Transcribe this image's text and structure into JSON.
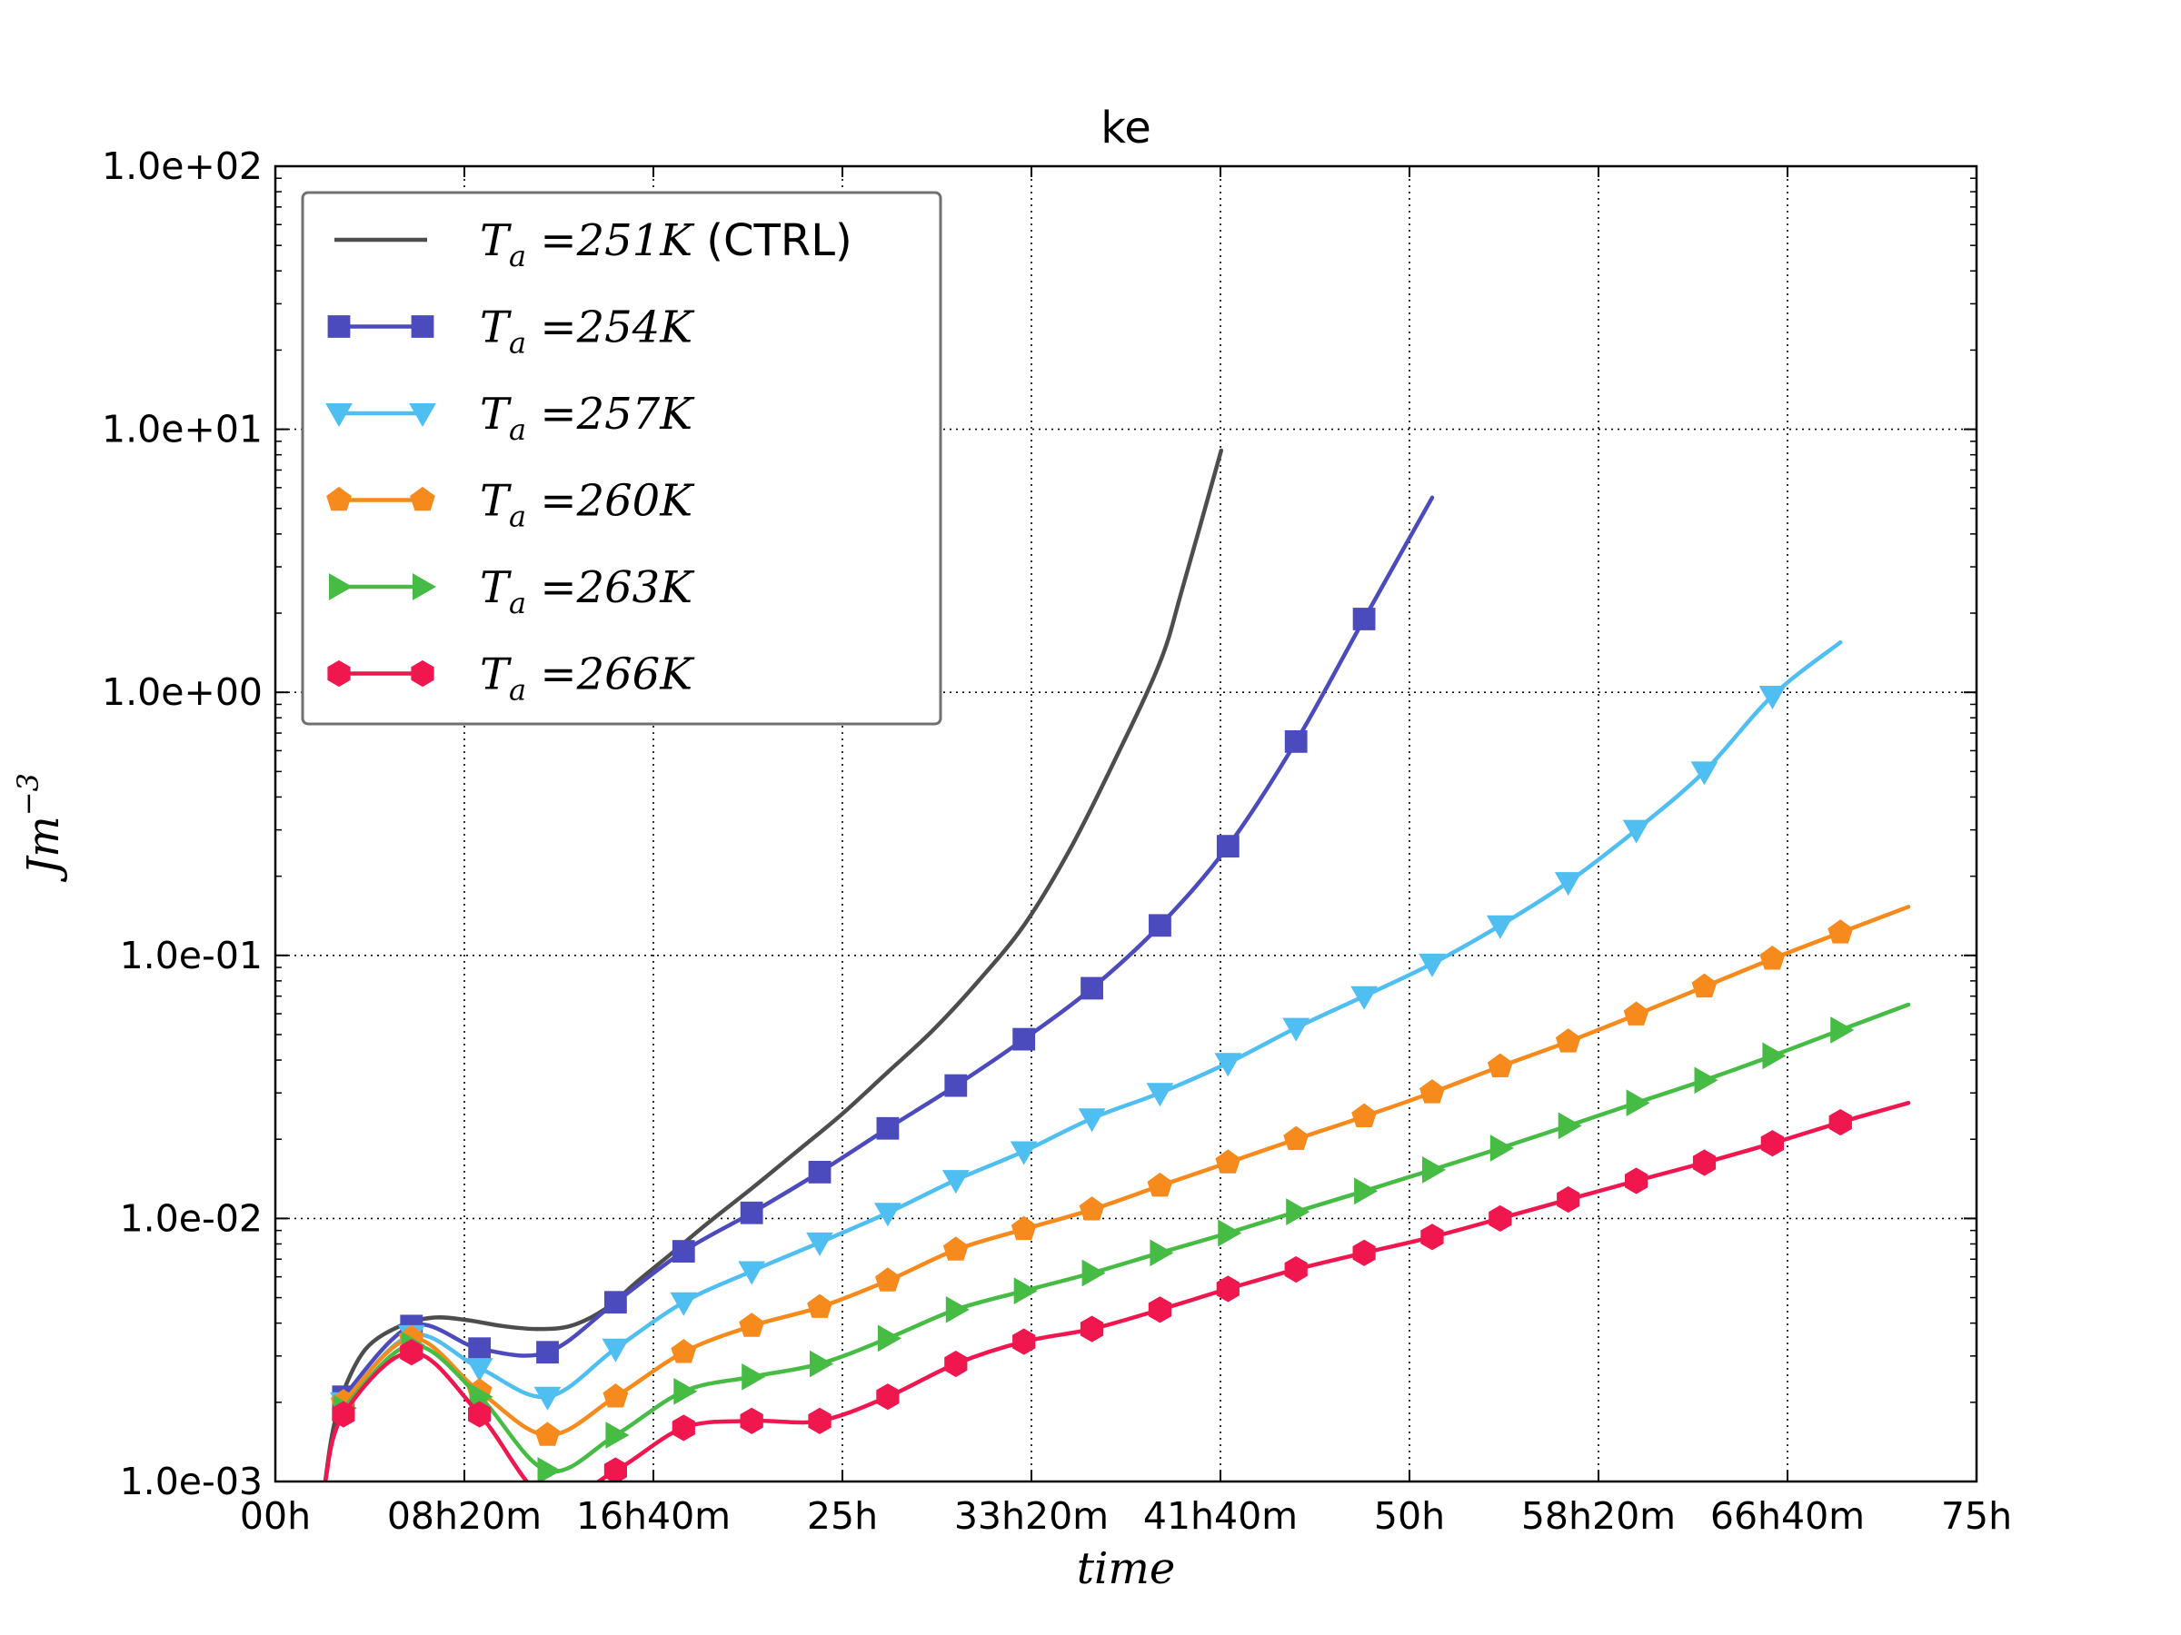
{
  "chart_data": {
    "type": "line",
    "title": "ke",
    "xlabel": "time",
    "ylabel_main": "Jm",
    "ylabel_exp": "−3",
    "xlim_hours": [
      0,
      75
    ],
    "ylim": [
      0.001,
      100
    ],
    "yscale": "log",
    "grid": true,
    "legend_position": "upper-left",
    "x_ticks": [
      0,
      8.333,
      16.667,
      25,
      33.333,
      41.667,
      50,
      58.333,
      66.667,
      75
    ],
    "x_tick_labels": [
      "00h",
      "08h20m",
      "16h40m",
      "25h",
      "33h20m",
      "41h40m",
      "50h",
      "58h20m",
      "66h40m",
      "75h"
    ],
    "y_ticks": [
      0.001,
      0.01,
      0.1,
      1,
      10,
      100
    ],
    "y_tick_labels": [
      "1.0e-03",
      "1.0e-02",
      "1.0e-01",
      "1.0e+00",
      "1.0e+01",
      "1.0e+02"
    ],
    "series": [
      {
        "label_sym": "T",
        "label_sub": "a",
        "label_val": " =251K",
        "label_extra": " (CTRL)",
        "color": "#4d4d4d",
        "marker": "none",
        "x": [
          2.2,
          2.5,
          3.0,
          4.0,
          5.5,
          7.0,
          8.5,
          10.0,
          11.5,
          13.0,
          14.5,
          16.0,
          17.5,
          19.0,
          21.0,
          23.0,
          25.0,
          27.0,
          29.0,
          31.0,
          33.0,
          35.0,
          37.0,
          39.0,
          40.0,
          41.7
        ],
        "y": [
          0.001,
          0.0015,
          0.0022,
          0.0032,
          0.0039,
          0.0042,
          0.0041,
          0.0039,
          0.0038,
          0.0039,
          0.0045,
          0.0058,
          0.0074,
          0.0095,
          0.013,
          0.018,
          0.025,
          0.036,
          0.052,
          0.08,
          0.13,
          0.25,
          0.55,
          1.3,
          2.5,
          8.3
        ]
      },
      {
        "label_sym": "T",
        "label_sub": "a",
        "label_val": " =254K",
        "label_extra": "",
        "color": "#4b4bbd",
        "marker": "square",
        "x": [
          3.0,
          6.0,
          9.0,
          12.0,
          15.0,
          18.0,
          21.0,
          24.0,
          27.0,
          30.0,
          33.0,
          36.0,
          39.0,
          42.0,
          45.0,
          48.0,
          51.0
        ],
        "y": [
          0.0021,
          0.0039,
          0.0032,
          0.0031,
          0.0048,
          0.0075,
          0.0105,
          0.015,
          0.022,
          0.032,
          0.048,
          0.075,
          0.13,
          0.26,
          0.65,
          1.9,
          5.5
        ],
        "marker_x": [
          3.0,
          6.0,
          9.0,
          12.0,
          15.0,
          18.0,
          21.0,
          24.0,
          27.0,
          30.0,
          33.0,
          36.0,
          39.0,
          42.0,
          45.0,
          48.0
        ]
      },
      {
        "label_sym": "T",
        "label_sub": "a",
        "label_val": " =257K",
        "label_extra": "",
        "color": "#4fbef0",
        "marker": "triangle-down",
        "x": [
          3.0,
          6.0,
          9.0,
          12.0,
          15.0,
          18.0,
          21.0,
          24.0,
          27.0,
          30.0,
          33.0,
          36.0,
          39.0,
          42.0,
          45.0,
          48.0,
          51.0,
          54.0,
          57.0,
          60.0,
          63.0,
          66.0,
          69.0
        ],
        "y": [
          0.002,
          0.0036,
          0.0027,
          0.0021,
          0.0032,
          0.0048,
          0.0063,
          0.0081,
          0.0105,
          0.014,
          0.018,
          0.024,
          0.03,
          0.039,
          0.053,
          0.07,
          0.093,
          0.13,
          0.19,
          0.3,
          0.5,
          0.97,
          1.55
        ],
        "marker_x": [
          3.0,
          6.0,
          9.0,
          12.0,
          15.0,
          18.0,
          21.0,
          24.0,
          27.0,
          30.0,
          33.0,
          36.0,
          39.0,
          42.0,
          45.0,
          48.0,
          51.0,
          54.0,
          57.0,
          60.0,
          63.0,
          66.0
        ]
      },
      {
        "label_sym": "T",
        "label_sub": "a",
        "label_val": " =260K",
        "label_extra": "",
        "color": "#f78a1d",
        "marker": "pentagon",
        "x": [
          3.0,
          6.0,
          9.0,
          12.0,
          15.0,
          18.0,
          21.0,
          24.0,
          27.0,
          30.0,
          33.0,
          36.0,
          39.0,
          42.0,
          45.0,
          48.0,
          51.0,
          54.0,
          57.0,
          60.0,
          63.0,
          66.0,
          69.0,
          72.0
        ],
        "y": [
          0.002,
          0.0035,
          0.0022,
          0.0015,
          0.0021,
          0.0031,
          0.0039,
          0.0046,
          0.0058,
          0.0076,
          0.0091,
          0.0108,
          0.0133,
          0.0163,
          0.02,
          0.0244,
          0.0301,
          0.0378,
          0.047,
          0.0595,
          0.076,
          0.097,
          0.122,
          0.153
        ],
        "marker_x": [
          3.0,
          6.0,
          9.0,
          12.0,
          15.0,
          18.0,
          21.0,
          24.0,
          27.0,
          30.0,
          33.0,
          36.0,
          39.0,
          42.0,
          45.0,
          48.0,
          51.0,
          54.0,
          57.0,
          60.0,
          63.0,
          66.0,
          69.0
        ]
      },
      {
        "label_sym": "T",
        "label_sub": "a",
        "label_val": " =263K",
        "label_extra": "",
        "color": "#46bc44",
        "marker": "triangle-right",
        "x": [
          3.0,
          6.0,
          9.0,
          12.0,
          15.0,
          18.0,
          21.0,
          24.0,
          27.0,
          30.0,
          33.0,
          36.0,
          39.0,
          42.0,
          45.0,
          48.0,
          51.0,
          54.0,
          57.0,
          60.0,
          63.0,
          66.0,
          69.0,
          72.0
        ],
        "y": [
          0.0019,
          0.0033,
          0.0021,
          0.0011,
          0.0015,
          0.0022,
          0.0025,
          0.0028,
          0.0035,
          0.0045,
          0.0053,
          0.0062,
          0.0074,
          0.0088,
          0.0106,
          0.0127,
          0.0153,
          0.0185,
          0.0225,
          0.0275,
          0.0335,
          0.0415,
          0.052,
          0.065
        ],
        "marker_x": [
          3.0,
          6.0,
          9.0,
          12.0,
          15.0,
          18.0,
          21.0,
          24.0,
          27.0,
          30.0,
          33.0,
          36.0,
          39.0,
          42.0,
          45.0,
          48.0,
          51.0,
          54.0,
          57.0,
          60.0,
          63.0,
          66.0,
          69.0
        ]
      },
      {
        "label_sym": "T",
        "label_sub": "a",
        "label_val": " =266K",
        "label_extra": "",
        "color": "#f0174f",
        "marker": "hexagon",
        "x": [
          2.2,
          3.0,
          6.0,
          9.0,
          12.0,
          15.0,
          18.0,
          21.0,
          24.0,
          27.0,
          30.0,
          33.0,
          36.0,
          39.0,
          42.0,
          45.0,
          48.0,
          51.0,
          54.0,
          57.0,
          60.0,
          63.0,
          66.0,
          69.0,
          72.0
        ],
        "y": [
          0.001,
          0.0018,
          0.0031,
          0.0018,
          0.00085,
          0.0011,
          0.0016,
          0.0017,
          0.0017,
          0.0021,
          0.0028,
          0.0034,
          0.0038,
          0.0045,
          0.0054,
          0.0064,
          0.0074,
          0.0085,
          0.01,
          0.0118,
          0.0139,
          0.0163,
          0.0193,
          0.0232,
          0.0275
        ],
        "marker_x": [
          3.0,
          6.0,
          9.0,
          12.0,
          15.0,
          18.0,
          21.0,
          24.0,
          27.0,
          30.0,
          33.0,
          36.0,
          39.0,
          42.0,
          45.0,
          48.0,
          51.0,
          54.0,
          57.0,
          60.0,
          63.0,
          66.0,
          69.0
        ]
      }
    ]
  }
}
